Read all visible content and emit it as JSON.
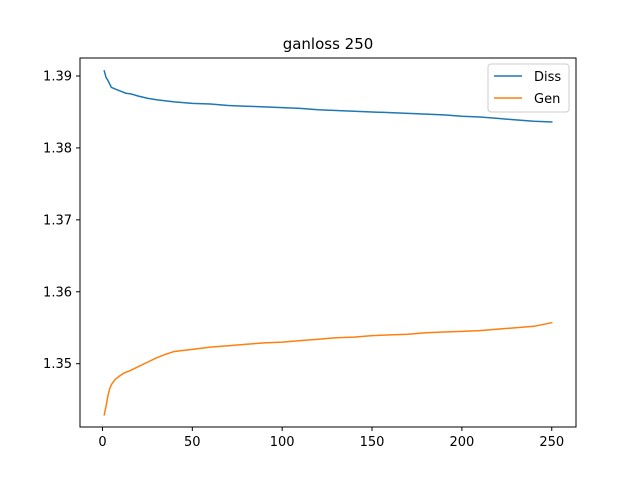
{
  "chart_data": {
    "type": "line",
    "title": "ganloss 250",
    "xlabel": "",
    "ylabel": "",
    "xlim": [
      -12.5,
      263.5
    ],
    "ylim": [
      1.3412,
      1.3925
    ],
    "xticks": [
      0,
      50,
      100,
      150,
      200,
      250
    ],
    "xtick_labels": [
      "0",
      "50",
      "100",
      "150",
      "200",
      "250"
    ],
    "yticks": [
      1.35,
      1.36,
      1.37,
      1.38,
      1.39
    ],
    "ytick_labels": [
      "1.35",
      "1.36",
      "1.37",
      "1.38",
      "1.39"
    ],
    "grid": false,
    "legend_position": "top-right",
    "series": [
      {
        "name": "Diss",
        "color": "#1f77b4",
        "x": [
          1,
          2,
          3,
          5,
          8,
          10,
          13,
          16,
          20,
          25,
          30,
          40,
          50,
          60,
          70,
          80,
          90,
          100,
          110,
          120,
          130,
          140,
          150,
          160,
          170,
          180,
          190,
          200,
          210,
          220,
          230,
          240,
          250
        ],
        "y": [
          1.3907,
          1.3898,
          1.3894,
          1.3884,
          1.3881,
          1.3879,
          1.3876,
          1.3875,
          1.3872,
          1.3869,
          1.3867,
          1.3864,
          1.3862,
          1.3861,
          1.3859,
          1.3858,
          1.3857,
          1.3856,
          1.3855,
          1.3853,
          1.3852,
          1.3851,
          1.385,
          1.3849,
          1.3848,
          1.3847,
          1.3846,
          1.3844,
          1.3843,
          1.3841,
          1.3839,
          1.3837,
          1.3836
        ]
      },
      {
        "name": "Gen",
        "color": "#ff7f0e",
        "x": [
          1,
          2,
          3,
          4,
          5,
          7,
          9,
          12,
          15,
          20,
          25,
          30,
          35,
          40,
          50,
          60,
          70,
          80,
          90,
          100,
          110,
          120,
          130,
          140,
          150,
          160,
          170,
          180,
          190,
          200,
          210,
          220,
          230,
          240,
          250
        ],
        "y": [
          1.3429,
          1.3441,
          1.3455,
          1.3465,
          1.3471,
          1.3478,
          1.3482,
          1.3487,
          1.349,
          1.3496,
          1.3502,
          1.3508,
          1.3513,
          1.3517,
          1.352,
          1.3523,
          1.3525,
          1.3527,
          1.3529,
          1.353,
          1.3532,
          1.3534,
          1.3536,
          1.3537,
          1.3539,
          1.354,
          1.3541,
          1.3543,
          1.3544,
          1.3545,
          1.3546,
          1.3548,
          1.355,
          1.3552,
          1.3557
        ]
      }
    ]
  }
}
